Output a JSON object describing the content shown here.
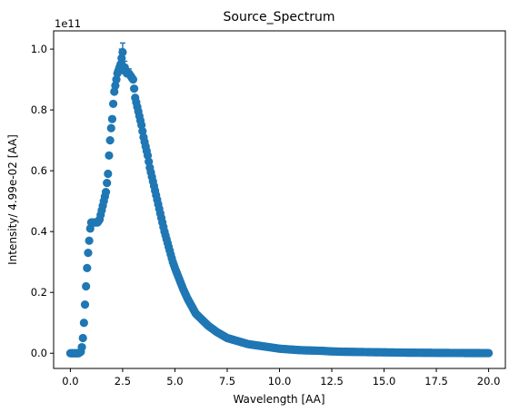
{
  "chart_data": {
    "type": "scatter",
    "title": "Source_Spectrum",
    "xlabel": "Wavelength [AA]",
    "ylabel": "Intensity/ 4.99e-02 [AA]",
    "offset_label": "1e11",
    "xlim": [
      -0.8,
      20.8
    ],
    "ylim": [
      -0.05,
      1.06
    ],
    "x_ticks": [
      0.0,
      2.5,
      5.0,
      7.5,
      10.0,
      12.5,
      15.0,
      17.5,
      20.0
    ],
    "x_tick_labels": [
      "0.0",
      "2.5",
      "5.0",
      "7.5",
      "10.0",
      "12.5",
      "15.0",
      "17.5",
      "20.0"
    ],
    "y_ticks": [
      0.0,
      0.2,
      0.4,
      0.6,
      0.8,
      1.0
    ],
    "y_tick_labels": [
      "0.0",
      "0.2",
      "0.4",
      "0.6",
      "0.8",
      "1.0"
    ],
    "grid": false,
    "legend": "none",
    "marker_color": "#1f77b4",
    "series": [
      {
        "points": [
          [
            0.0,
            0.0
          ],
          [
            0.1,
            0.0
          ],
          [
            0.2,
            0.0
          ],
          [
            0.3,
            0.0
          ],
          [
            0.4,
            0.0
          ],
          [
            0.5,
            0.005
          ],
          [
            0.55,
            0.02
          ],
          [
            0.6,
            0.05
          ],
          [
            0.65,
            0.1
          ],
          [
            0.7,
            0.16
          ],
          [
            0.75,
            0.22
          ],
          [
            0.8,
            0.28
          ],
          [
            0.85,
            0.33
          ],
          [
            0.9,
            0.37
          ],
          [
            0.95,
            0.41
          ],
          [
            1.0,
            0.43
          ],
          [
            1.1,
            0.43
          ],
          [
            1.2,
            0.43
          ],
          [
            1.3,
            0.43
          ],
          [
            1.4,
            0.44
          ],
          [
            1.5,
            0.47
          ],
          [
            1.6,
            0.5
          ],
          [
            1.7,
            0.53
          ],
          [
            1.8,
            0.59
          ],
          [
            1.85,
            0.65
          ],
          [
            1.9,
            0.7
          ],
          [
            1.95,
            0.74
          ],
          [
            2.0,
            0.77
          ],
          [
            2.05,
            0.82
          ],
          [
            2.1,
            0.86
          ],
          [
            2.15,
            0.88
          ],
          [
            2.2,
            0.9
          ],
          [
            2.25,
            0.92
          ],
          [
            2.3,
            0.93
          ],
          [
            2.35,
            0.94
          ],
          [
            2.4,
            0.95
          ],
          [
            2.45,
            0.97
          ],
          [
            2.5,
            0.99
          ],
          [
            2.55,
            0.93
          ],
          [
            2.6,
            0.94
          ],
          [
            2.7,
            0.92
          ],
          [
            2.8,
            0.92
          ],
          [
            2.9,
            0.91
          ],
          [
            3.0,
            0.9
          ],
          [
            3.05,
            0.87
          ],
          [
            3.1,
            0.84
          ],
          [
            3.2,
            0.81
          ],
          [
            3.3,
            0.78
          ],
          [
            3.4,
            0.75
          ],
          [
            3.5,
            0.71
          ],
          [
            3.6,
            0.68
          ],
          [
            3.7,
            0.65
          ],
          [
            3.8,
            0.61
          ],
          [
            3.9,
            0.58
          ],
          [
            4.0,
            0.55
          ],
          [
            4.1,
            0.52
          ],
          [
            4.2,
            0.49
          ],
          [
            4.3,
            0.46
          ],
          [
            4.4,
            0.43
          ],
          [
            4.5,
            0.4
          ],
          [
            4.6,
            0.375
          ],
          [
            4.7,
            0.35
          ],
          [
            4.8,
            0.325
          ],
          [
            4.9,
            0.3
          ],
          [
            5.0,
            0.28
          ],
          [
            5.2,
            0.245
          ],
          [
            5.4,
            0.21
          ],
          [
            5.6,
            0.18
          ],
          [
            5.8,
            0.155
          ],
          [
            6.0,
            0.13
          ],
          [
            6.3,
            0.11
          ],
          [
            6.6,
            0.09
          ],
          [
            7.0,
            0.07
          ],
          [
            7.5,
            0.05
          ],
          [
            8.0,
            0.04
          ],
          [
            8.5,
            0.03
          ],
          [
            9.0,
            0.025
          ],
          [
            9.5,
            0.02
          ],
          [
            10.0,
            0.015
          ],
          [
            11.0,
            0.01
          ],
          [
            12.0,
            0.008
          ],
          [
            12.5,
            0.006
          ],
          [
            13.0,
            0.005
          ],
          [
            14.0,
            0.004
          ],
          [
            15.0,
            0.003
          ],
          [
            16.0,
            0.002
          ],
          [
            17.0,
            0.0015
          ],
          [
            18.0,
            0.001
          ],
          [
            19.0,
            0.0008
          ],
          [
            20.0,
            0.0005
          ]
        ]
      }
    ]
  }
}
